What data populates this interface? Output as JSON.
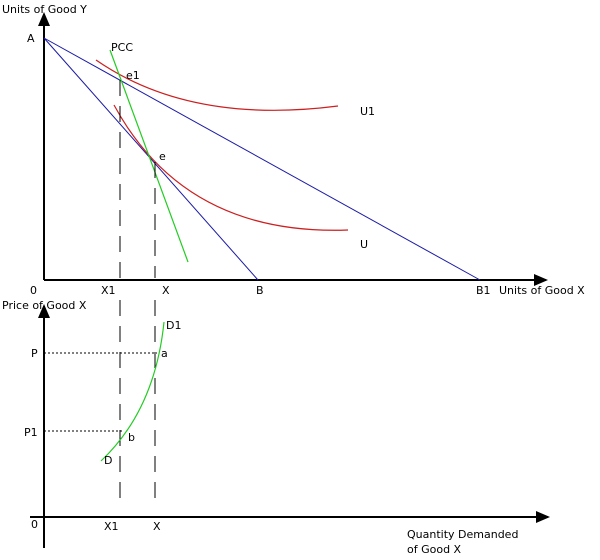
{
  "top_panel": {
    "y_axis_label": "Units of Good Y",
    "x_axis_label": "Units of Good X",
    "origin_label": "0",
    "intercept_y": "A",
    "intercept_x_initial": "B",
    "intercept_x_new": "B1",
    "qty_initial": "X",
    "qty_new": "X1",
    "pcc_label": "PCC",
    "point_initial": "e",
    "point_new": "e1",
    "curve_initial": "U",
    "curve_new": "U1"
  },
  "bottom_panel": {
    "y_axis_label": "Price of Good X",
    "x_axis_label_line1": "Quantity Demanded",
    "x_axis_label_line2": "of Good X",
    "origin_label": "0",
    "price_initial": "P",
    "price_new": "P1",
    "qty_initial": "X",
    "qty_new": "X1",
    "point_initial": "a",
    "point_new": "b",
    "curve_start": "D",
    "curve_end": "D1"
  },
  "colors": {
    "axis": "#000000",
    "budget_line": "#1a1aa6",
    "indifference_curve": "#cc1f1f",
    "pcc_and_demand": "#22cc22",
    "text": "#000000"
  }
}
